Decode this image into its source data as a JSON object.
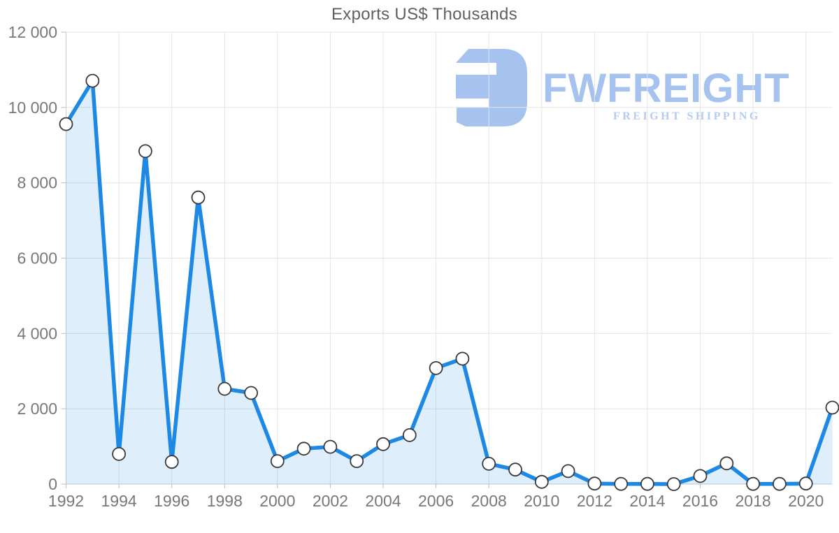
{
  "colors": {
    "line": "#1e88e5",
    "fill": "rgba(30,136,229,0.14)",
    "grid": "#e5e5e5",
    "axis": "#c6cdd4",
    "tick": "#bdbdbd",
    "label": "#77787b",
    "title": "#5f6064",
    "marker_fill": "#ffffff",
    "marker_stroke": "#3a3a3a",
    "logo_blue": "#a6c2ee",
    "logo_subtitle_blue": "#b5cbf2"
  },
  "logo": {
    "wordmark": "FWFREIGHT",
    "subtitle": "FREIGHT SHIPPING",
    "icon": "fwfreight-mark"
  },
  "chart_data": {
    "type": "area",
    "title": "Exports US$ Thousands",
    "xlabel": "",
    "ylabel": "",
    "grid": true,
    "legend": "none",
    "marker": "circle-white-outlined",
    "x": [
      1992,
      1993,
      1994,
      1995,
      1996,
      1997,
      1998,
      1999,
      2000,
      2001,
      2002,
      2003,
      2004,
      2005,
      2006,
      2007,
      2008,
      2009,
      2010,
      2011,
      2012,
      2013,
      2014,
      2015,
      2016,
      2017,
      2018,
      2019,
      2020,
      2021
    ],
    "values": [
      9560,
      10710,
      800,
      8840,
      590,
      7610,
      2530,
      2420,
      610,
      940,
      990,
      610,
      1060,
      1300,
      3080,
      3330,
      540,
      385,
      60,
      345,
      15,
      5,
      5,
      0,
      215,
      550,
      5,
      5,
      15,
      2030
    ],
    "ylim": [
      0,
      12000
    ],
    "y_ticks": [
      0,
      2000,
      4000,
      6000,
      8000,
      10000,
      12000
    ],
    "y_tick_labels": [
      "0",
      "2 000",
      "4 000",
      "6 000",
      "8 000",
      "10 000",
      "12 000"
    ],
    "x_ticks": [
      1992,
      1994,
      1996,
      1998,
      2000,
      2002,
      2004,
      2006,
      2008,
      2010,
      2012,
      2014,
      2016,
      2018,
      2020
    ]
  }
}
